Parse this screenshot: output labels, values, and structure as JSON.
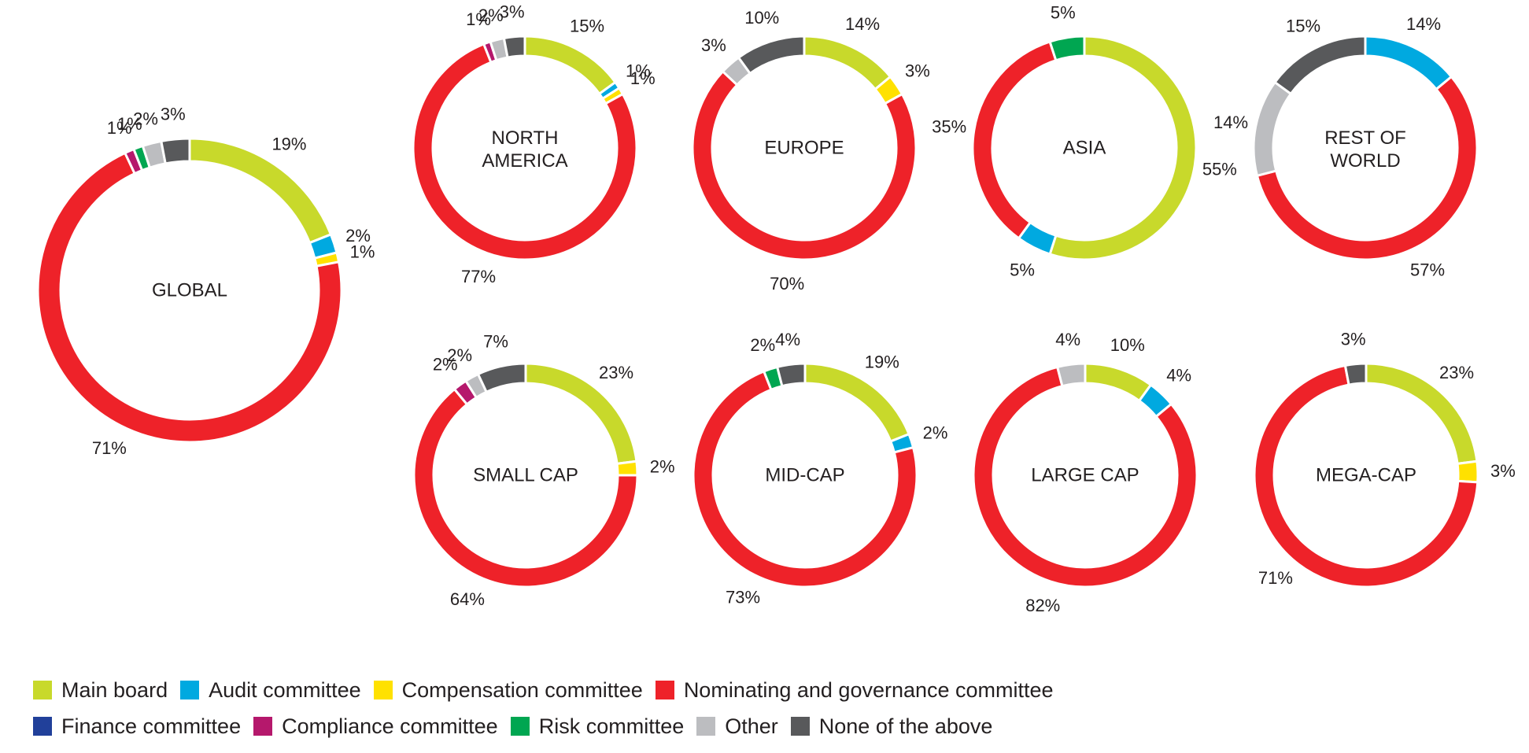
{
  "colors": {
    "main_board": "#c8d92b",
    "audit": "#00a9e0",
    "compensation": "#ffe100",
    "nominating": "#ee2229",
    "finance": "#21409a",
    "compliance": "#b5186c",
    "risk": "#00a651",
    "other": "#bcbdc0",
    "none": "#58595b",
    "text": "#231f20"
  },
  "chart_data": [
    {
      "type": "pie",
      "title": "GLOBAL",
      "categories": [
        "Main board",
        "Audit committee",
        "Compensation committee",
        "Nominating and governance committee",
        "Compliance committee",
        "Risk committee",
        "Other",
        "None of the above"
      ],
      "values": [
        19,
        2,
        1,
        71,
        1,
        1,
        2,
        3
      ],
      "labels": [
        "19%",
        "2%",
        "1%",
        "71%",
        "1%",
        "1%",
        "2%",
        "3%"
      ]
    },
    {
      "type": "pie",
      "title": "NORTH AMERICA",
      "categories": [
        "Main board",
        "Audit committee",
        "Compensation committee",
        "Nominating and governance committee",
        "Compliance committee",
        "Other",
        "None of the above"
      ],
      "values": [
        15,
        1,
        1,
        77,
        1,
        2,
        3
      ],
      "labels": [
        "15%",
        "1%",
        "1%",
        "77%",
        "1%",
        "2%",
        "3%"
      ]
    },
    {
      "type": "pie",
      "title": "EUROPE",
      "categories": [
        "Main board",
        "Compensation committee",
        "Nominating and governance committee",
        "Other",
        "None of the above"
      ],
      "values": [
        14,
        3,
        70,
        3,
        10
      ],
      "labels": [
        "14%",
        "3%",
        "70%",
        "3%",
        "10%"
      ]
    },
    {
      "type": "pie",
      "title": "ASIA",
      "categories": [
        "Main board",
        "Audit committee",
        "Nominating and governance committee",
        "Risk committee"
      ],
      "values": [
        55,
        5,
        35,
        5
      ],
      "labels": [
        "55%",
        "5%",
        "35%",
        "5%"
      ]
    },
    {
      "type": "pie",
      "title": "REST OF WORLD",
      "categories": [
        "Audit committee",
        "Nominating and governance committee",
        "Other",
        "None of the above"
      ],
      "values": [
        14,
        57,
        14,
        15
      ],
      "labels": [
        "14%",
        "57%",
        "14%",
        "15%"
      ]
    },
    {
      "type": "pie",
      "title": "SMALL CAP",
      "categories": [
        "Main board",
        "Compensation committee",
        "Nominating and governance committee",
        "Compliance committee",
        "Other",
        "None of the above"
      ],
      "values": [
        23,
        2,
        64,
        2,
        2,
        7
      ],
      "labels": [
        "23%",
        "2%",
        "64%",
        "2%",
        "2%",
        "7%"
      ]
    },
    {
      "type": "pie",
      "title": "MID-CAP",
      "categories": [
        "Main board",
        "Audit committee",
        "Nominating and governance committee",
        "Risk committee",
        "None of the above"
      ],
      "values": [
        19,
        2,
        73,
        2,
        4
      ],
      "labels": [
        "19%",
        "2%",
        "73%",
        "2%",
        "4%"
      ]
    },
    {
      "type": "pie",
      "title": "LARGE CAP",
      "categories": [
        "Main board",
        "Audit committee",
        "Nominating and governance committee",
        "Other"
      ],
      "values": [
        10,
        4,
        82,
        4
      ],
      "labels": [
        "10%",
        "4%",
        "82%",
        "4%"
      ]
    },
    {
      "type": "pie",
      "title": "MEGA-CAP",
      "categories": [
        "Main board",
        "Compensation committee",
        "Nominating and governance committee",
        "None of the above"
      ],
      "values": [
        23,
        3,
        71,
        3
      ],
      "labels": [
        "23%",
        "3%",
        "71%",
        "3%"
      ]
    }
  ],
  "legend": {
    "placement": "bottom-left",
    "items": [
      {
        "label": "Main board",
        "color": "#c8d92b"
      },
      {
        "label": "Audit committee",
        "color": "#00a9e0"
      },
      {
        "label": "Compensation committee",
        "color": "#ffe100"
      },
      {
        "label": "Nominating and governance committee",
        "color": "#ee2229"
      },
      {
        "label": "Finance committee",
        "color": "#21409a"
      },
      {
        "label": "Compliance committee",
        "color": "#b5186c"
      },
      {
        "label": "Risk committee",
        "color": "#00a651"
      },
      {
        "label": "Other",
        "color": "#bcbdc0"
      },
      {
        "label": "None of the above",
        "color": "#58595b"
      }
    ]
  }
}
